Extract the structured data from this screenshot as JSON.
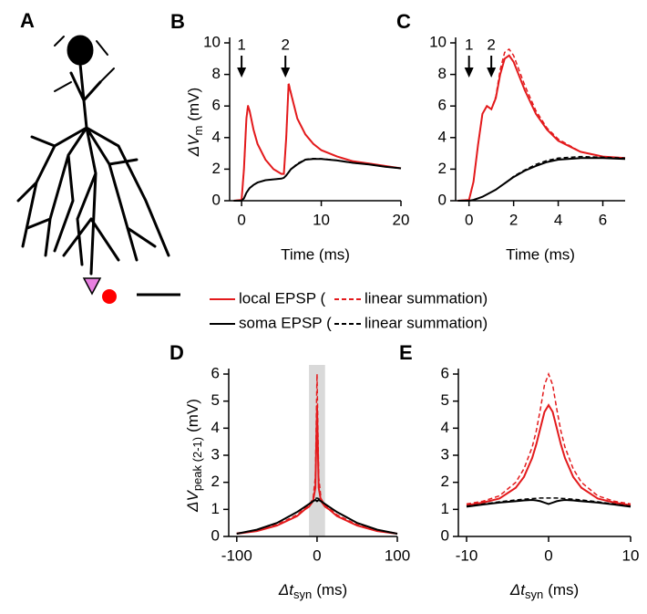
{
  "panel_a_label": "A",
  "legend": [
    {
      "solid": "local EPSP (",
      "dashed": "linear summation)",
      "color": "#e31a1c"
    },
    {
      "solid": "soma EPSP (",
      "dashed": "linear summation)",
      "color": "#000000"
    }
  ],
  "chart_data": [
    {
      "type": "line",
      "panel_label": "B",
      "xlim": [
        -1.5,
        20
      ],
      "ylim": [
        0,
        10
      ],
      "xticks": [
        0,
        10,
        20
      ],
      "yticks": [
        0,
        2,
        4,
        6,
        8,
        10
      ],
      "xlabel": "Time (ms)",
      "ylabel": {
        "main": "ΔV",
        "sub": "m",
        "unit": "(mV)"
      },
      "x": [
        -1,
        0,
        0.3,
        0.6,
        0.8,
        1,
        1.5,
        2,
        3,
        4,
        5,
        5.3,
        5.6,
        5.9,
        6.2,
        7,
        8,
        9,
        10,
        12,
        14,
        16,
        18,
        20
      ],
      "series": [
        {
          "color": "#e31a1c",
          "dash": false,
          "values": [
            0,
            0.05,
            2,
            5.2,
            6,
            5.7,
            4.5,
            3.6,
            2.6,
            2.0,
            1.7,
            1.7,
            4,
            7.4,
            6.8,
            5.2,
            4.2,
            3.6,
            3.2,
            2.8,
            2.5,
            2.35,
            2.2,
            2.05
          ]
        },
        {
          "color": "#e31a1c",
          "dash": true,
          "values": [
            0,
            0.05,
            2,
            5.2,
            6.05,
            5.7,
            4.5,
            3.6,
            2.6,
            2.0,
            1.7,
            1.7,
            4,
            7.5,
            6.85,
            5.2,
            4.2,
            3.6,
            3.2,
            2.8,
            2.5,
            2.35,
            2.2,
            2.05
          ]
        },
        {
          "color": "#000000",
          "dash": false,
          "values": [
            0,
            0,
            0.15,
            0.5,
            0.65,
            0.8,
            1.0,
            1.15,
            1.3,
            1.35,
            1.4,
            1.45,
            1.6,
            1.8,
            2.0,
            2.3,
            2.6,
            2.65,
            2.65,
            2.55,
            2.4,
            2.3,
            2.15,
            2.05
          ]
        },
        {
          "color": "#000000",
          "dash": true,
          "values": [
            0,
            0,
            0.15,
            0.5,
            0.65,
            0.8,
            1.0,
            1.15,
            1.3,
            1.35,
            1.4,
            1.45,
            1.6,
            1.8,
            2.0,
            2.35,
            2.62,
            2.67,
            2.66,
            2.56,
            2.4,
            2.3,
            2.15,
            2.05
          ]
        }
      ],
      "annotations": [
        {
          "text": "1",
          "x": 0
        },
        {
          "text": "2",
          "x": 5.5
        }
      ]
    },
    {
      "type": "line",
      "panel_label": "C",
      "xlim": [
        -0.6,
        7
      ],
      "ylim": [
        0,
        10
      ],
      "xticks": [
        0,
        2,
        4,
        6
      ],
      "yticks": [
        0,
        2,
        4,
        6,
        8,
        10
      ],
      "xlabel": "Time (ms)",
      "x": [
        -0.5,
        0,
        0.2,
        0.4,
        0.6,
        0.8,
        1,
        1.2,
        1.4,
        1.6,
        1.8,
        2,
        2.5,
        3,
        3.5,
        4,
        5,
        6,
        7
      ],
      "series": [
        {
          "color": "#e31a1c",
          "dash": false,
          "values": [
            0,
            0.05,
            1.2,
            3.5,
            5.5,
            6.0,
            5.8,
            6.5,
            8.0,
            9.0,
            9.2,
            8.8,
            7.0,
            5.5,
            4.5,
            3.8,
            3.1,
            2.8,
            2.7
          ]
        },
        {
          "color": "#e31a1c",
          "dash": true,
          "values": [
            0,
            0.05,
            1.2,
            3.5,
            5.5,
            6.0,
            5.8,
            6.6,
            8.3,
            9.4,
            9.6,
            9.2,
            7.3,
            5.7,
            4.6,
            3.9,
            3.1,
            2.8,
            2.7
          ]
        },
        {
          "color": "#000000",
          "dash": false,
          "values": [
            0,
            0,
            0.05,
            0.15,
            0.25,
            0.4,
            0.55,
            0.7,
            0.9,
            1.1,
            1.3,
            1.5,
            1.9,
            2.2,
            2.45,
            2.6,
            2.7,
            2.7,
            2.65
          ]
        },
        {
          "color": "#000000",
          "dash": true,
          "values": [
            0,
            0,
            0.05,
            0.15,
            0.25,
            0.4,
            0.55,
            0.7,
            0.9,
            1.1,
            1.3,
            1.55,
            1.95,
            2.3,
            2.55,
            2.7,
            2.8,
            2.75,
            2.7
          ]
        }
      ],
      "annotations": [
        {
          "text": "1",
          "x": 0
        },
        {
          "text": "2",
          "x": 1
        }
      ]
    },
    {
      "type": "line",
      "panel_label": "D",
      "xlim": [
        -110,
        100
      ],
      "ylim": [
        0,
        6
      ],
      "xticks": [
        -100,
        0,
        100
      ],
      "yticks": [
        0,
        1,
        2,
        3,
        4,
        5,
        6
      ],
      "xlabel": {
        "main": "Δt",
        "sub": "syn",
        "unit": "(ms)"
      },
      "ylabel": {
        "main": "ΔV",
        "sub": "peak (2-1)",
        "unit": "(mV)"
      },
      "shade": [
        -10,
        10
      ],
      "x": [
        -100,
        -75,
        -50,
        -25,
        -15,
        -10,
        -5,
        -2,
        0,
        2,
        5,
        10,
        15,
        25,
        50,
        75,
        100
      ],
      "series": [
        {
          "color": "#e31a1c",
          "dash": false,
          "values": [
            0.1,
            0.2,
            0.4,
            0.75,
            1.0,
            1.1,
            1.3,
            1.8,
            4.85,
            1.8,
            1.3,
            1.1,
            1.0,
            0.75,
            0.4,
            0.2,
            0.1
          ]
        },
        {
          "color": "#e31a1c",
          "dash": true,
          "values": [
            0.12,
            0.22,
            0.43,
            0.8,
            1.05,
            1.15,
            1.4,
            2.2,
            6.0,
            2.2,
            1.4,
            1.15,
            1.05,
            0.8,
            0.43,
            0.22,
            0.12
          ]
        },
        {
          "color": "#000000",
          "dash": false,
          "values": [
            0.1,
            0.25,
            0.5,
            0.9,
            1.1,
            1.2,
            1.3,
            1.35,
            1.3,
            1.35,
            1.3,
            1.2,
            1.1,
            0.9,
            0.5,
            0.25,
            0.1
          ]
        },
        {
          "color": "#000000",
          "dash": true,
          "values": [
            0.1,
            0.25,
            0.5,
            0.9,
            1.1,
            1.2,
            1.3,
            1.4,
            1.42,
            1.4,
            1.3,
            1.2,
            1.1,
            0.9,
            0.5,
            0.25,
            0.1
          ]
        }
      ]
    },
    {
      "type": "line",
      "panel_label": "E",
      "xlim": [
        -11,
        10
      ],
      "ylim": [
        0,
        6
      ],
      "xticks": [
        -10,
        0,
        10
      ],
      "yticks": [
        0,
        1,
        2,
        3,
        4,
        5,
        6
      ],
      "xlabel": {
        "main": "Δt",
        "sub": "syn",
        "unit": "(ms)"
      },
      "x": [
        -10,
        -8,
        -6,
        -4,
        -3,
        -2,
        -1.5,
        -1,
        -0.5,
        0,
        0.5,
        1,
        1.5,
        2,
        3,
        4,
        6,
        8,
        10
      ],
      "series": [
        {
          "color": "#e31a1c",
          "dash": false,
          "values": [
            1.15,
            1.25,
            1.4,
            1.8,
            2.2,
            2.9,
            3.4,
            4.0,
            4.6,
            4.85,
            4.6,
            4.0,
            3.4,
            2.9,
            2.2,
            1.8,
            1.4,
            1.25,
            1.15
          ]
        },
        {
          "color": "#e31a1c",
          "dash": true,
          "values": [
            1.2,
            1.3,
            1.5,
            2.0,
            2.5,
            3.3,
            3.9,
            4.7,
            5.6,
            6.0,
            5.6,
            4.7,
            3.9,
            3.3,
            2.5,
            2.0,
            1.5,
            1.3,
            1.2
          ]
        },
        {
          "color": "#000000",
          "dash": false,
          "values": [
            1.1,
            1.18,
            1.25,
            1.3,
            1.33,
            1.35,
            1.33,
            1.3,
            1.25,
            1.2,
            1.25,
            1.3,
            1.33,
            1.35,
            1.33,
            1.3,
            1.25,
            1.18,
            1.1
          ]
        },
        {
          "color": "#000000",
          "dash": true,
          "values": [
            1.12,
            1.2,
            1.28,
            1.35,
            1.38,
            1.4,
            1.41,
            1.42,
            1.42,
            1.42,
            1.42,
            1.42,
            1.41,
            1.4,
            1.38,
            1.35,
            1.28,
            1.2,
            1.12
          ]
        }
      ]
    }
  ]
}
